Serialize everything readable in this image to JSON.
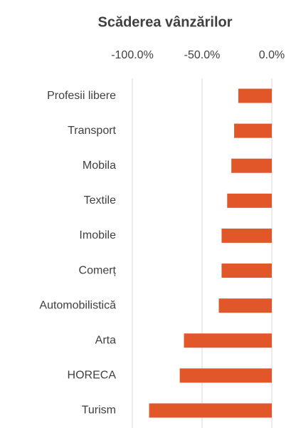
{
  "chart_data": {
    "type": "barh",
    "title": "Scăderea vânzărilor",
    "categories": [
      "Profesii libere",
      "Transport",
      "Mobila",
      "Textile",
      "Imobile",
      "Comerț",
      "Automobilistică",
      "Arta",
      "HORECA",
      "Turism"
    ],
    "values": [
      -24,
      -27,
      -29,
      -32,
      -36,
      -36,
      -38,
      -63,
      -66,
      -88
    ],
    "color": "#e2572a",
    "xlim": [
      -100,
      0
    ],
    "xticks": [
      {
        "value": -100,
        "label": "-100.0%"
      },
      {
        "value": -50,
        "label": "-50.0%"
      },
      {
        "value": 0,
        "label": "0.0%"
      }
    ],
    "grid": true
  }
}
